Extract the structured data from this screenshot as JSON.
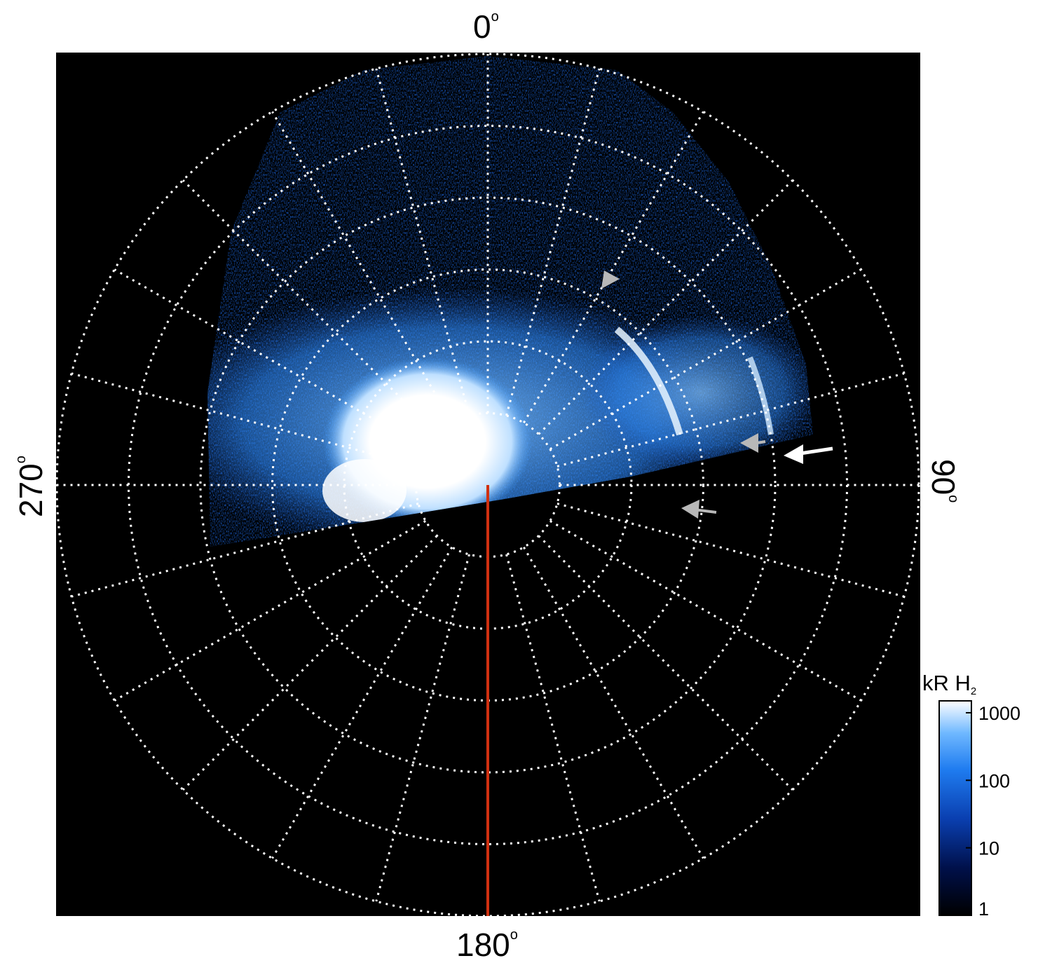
{
  "image": {
    "description_free": true,
    "labels": {
      "top": "0",
      "right": "90",
      "bottom": "180",
      "left": "270",
      "degree_symbol": "o"
    },
    "colorbar": {
      "title_main": "kR H",
      "title_sub": "2",
      "ticks": [
        "1000",
        "100",
        "10",
        "1"
      ],
      "scale": "log",
      "range": [
        1,
        1500
      ]
    },
    "colors": {
      "background": "#000000",
      "grid": "#ffffff",
      "emission_dim": "#1f6fe0",
      "emission_mid": "#3d9bff",
      "emission_bright": "#ffffff",
      "reference_line": "#d03010",
      "arrow_white": "#ffffff",
      "arrow_grey": "#b8b8b8"
    },
    "grid": {
      "rings": 6,
      "spokes": 24
    }
  }
}
